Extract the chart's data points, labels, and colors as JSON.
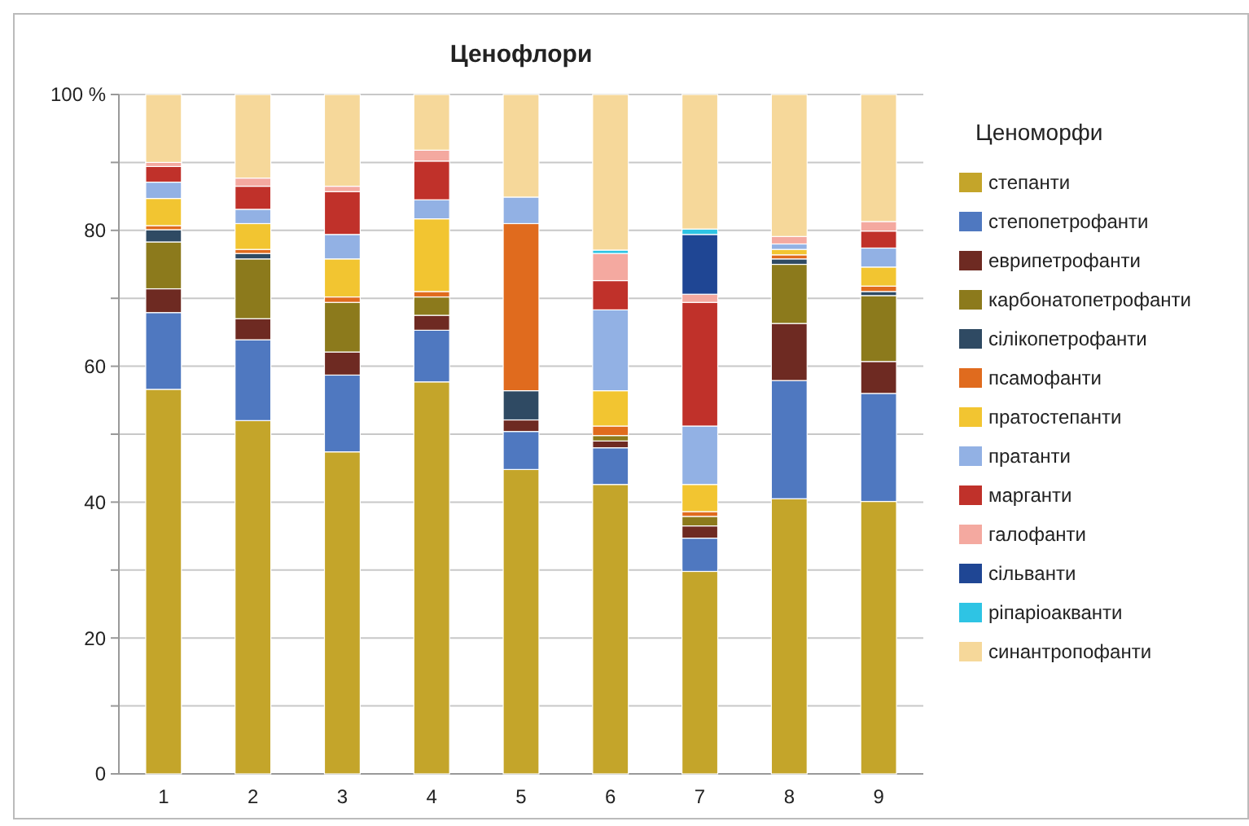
{
  "chart_data": {
    "type": "bar",
    "title": "Ценофлори",
    "legend_title": "Ценоморфи",
    "stacked": true,
    "grid": true,
    "legend": "right",
    "categories": [
      "1",
      "2",
      "3",
      "4",
      "5",
      "6",
      "7",
      "8",
      "9"
    ],
    "ylim": [
      0,
      100
    ],
    "yticks": [
      0,
      {
        "value": 10,
        "label": null
      },
      20,
      {
        "value": 30,
        "label": null
      },
      40,
      {
        "value": 50,
        "label": null
      },
      60,
      {
        "value": 70,
        "label": null
      },
      80,
      {
        "value": 90,
        "label": null
      },
      {
        "value": 100,
        "label": "100 %"
      }
    ],
    "series": [
      {
        "name": "степанти",
        "color": "#c4a52a",
        "values": [
          56.6,
          52,
          47.4,
          57.7,
          44.8,
          42.6,
          29.8,
          40.5,
          40.1
        ]
      },
      {
        "name": "степопетрофанти",
        "color": "#4f78c0",
        "values": [
          11.3,
          11.9,
          11.3,
          7.6,
          5.6,
          5.4,
          4.9,
          17.4,
          15.9
        ]
      },
      {
        "name": "еврипетрофанти",
        "color": "#6e2a22",
        "values": [
          3.5,
          3.1,
          3.4,
          2.2,
          1.7,
          1,
          1.8,
          8.4,
          4.7
        ]
      },
      {
        "name": "карбонатопетрофанти",
        "color": "#8c7a1c",
        "values": [
          6.9,
          8.8,
          7.3,
          2.7,
          0,
          0.8,
          1.4,
          8.7,
          9.7
        ]
      },
      {
        "name": "сілікопетрофанти",
        "color": "#2f4a63",
        "values": [
          1.8,
          0.8,
          0,
          0,
          4.3,
          0,
          0,
          0.8,
          0.6
        ]
      },
      {
        "name": "псамофанти",
        "color": "#e06b1e",
        "values": [
          0.6,
          0.6,
          0.8,
          0.8,
          24.6,
          1.4,
          0.7,
          0.6,
          0.8
        ]
      },
      {
        "name": "пратостепанти",
        "color": "#f2c531",
        "values": [
          4,
          3.8,
          5.6,
          10.7,
          0,
          5.2,
          4,
          0.8,
          2.8
        ]
      },
      {
        "name": "пратанти",
        "color": "#92b1e4",
        "values": [
          2.4,
          2.1,
          3.6,
          2.8,
          3.9,
          11.9,
          8.6,
          0.8,
          2.8
        ]
      },
      {
        "name": "марганти",
        "color": "#c0312a",
        "values": [
          2.3,
          3.4,
          6.3,
          5.7,
          0,
          4.3,
          18.2,
          0,
          2.5
        ]
      },
      {
        "name": "галофанти",
        "color": "#f4a9a0",
        "values": [
          0.6,
          1.2,
          0.8,
          1.6,
          0,
          4,
          1.2,
          1.1,
          1.4
        ]
      },
      {
        "name": "сільванти",
        "color": "#1f4694",
        "values": [
          0,
          0,
          0,
          0,
          0,
          0,
          8.8,
          0,
          0
        ]
      },
      {
        "name": "ріпаріоакванти",
        "color": "#2ec4e4",
        "values": [
          0,
          0,
          0,
          0,
          0,
          0.5,
          0.8,
          0,
          0
        ]
      },
      {
        "name": "синантропофанти",
        "color": "#f6d89a",
        "values": [
          10,
          12.3,
          13.5,
          8.2,
          15.1,
          22.9,
          19.8,
          20.9,
          18.7
        ]
      }
    ]
  }
}
